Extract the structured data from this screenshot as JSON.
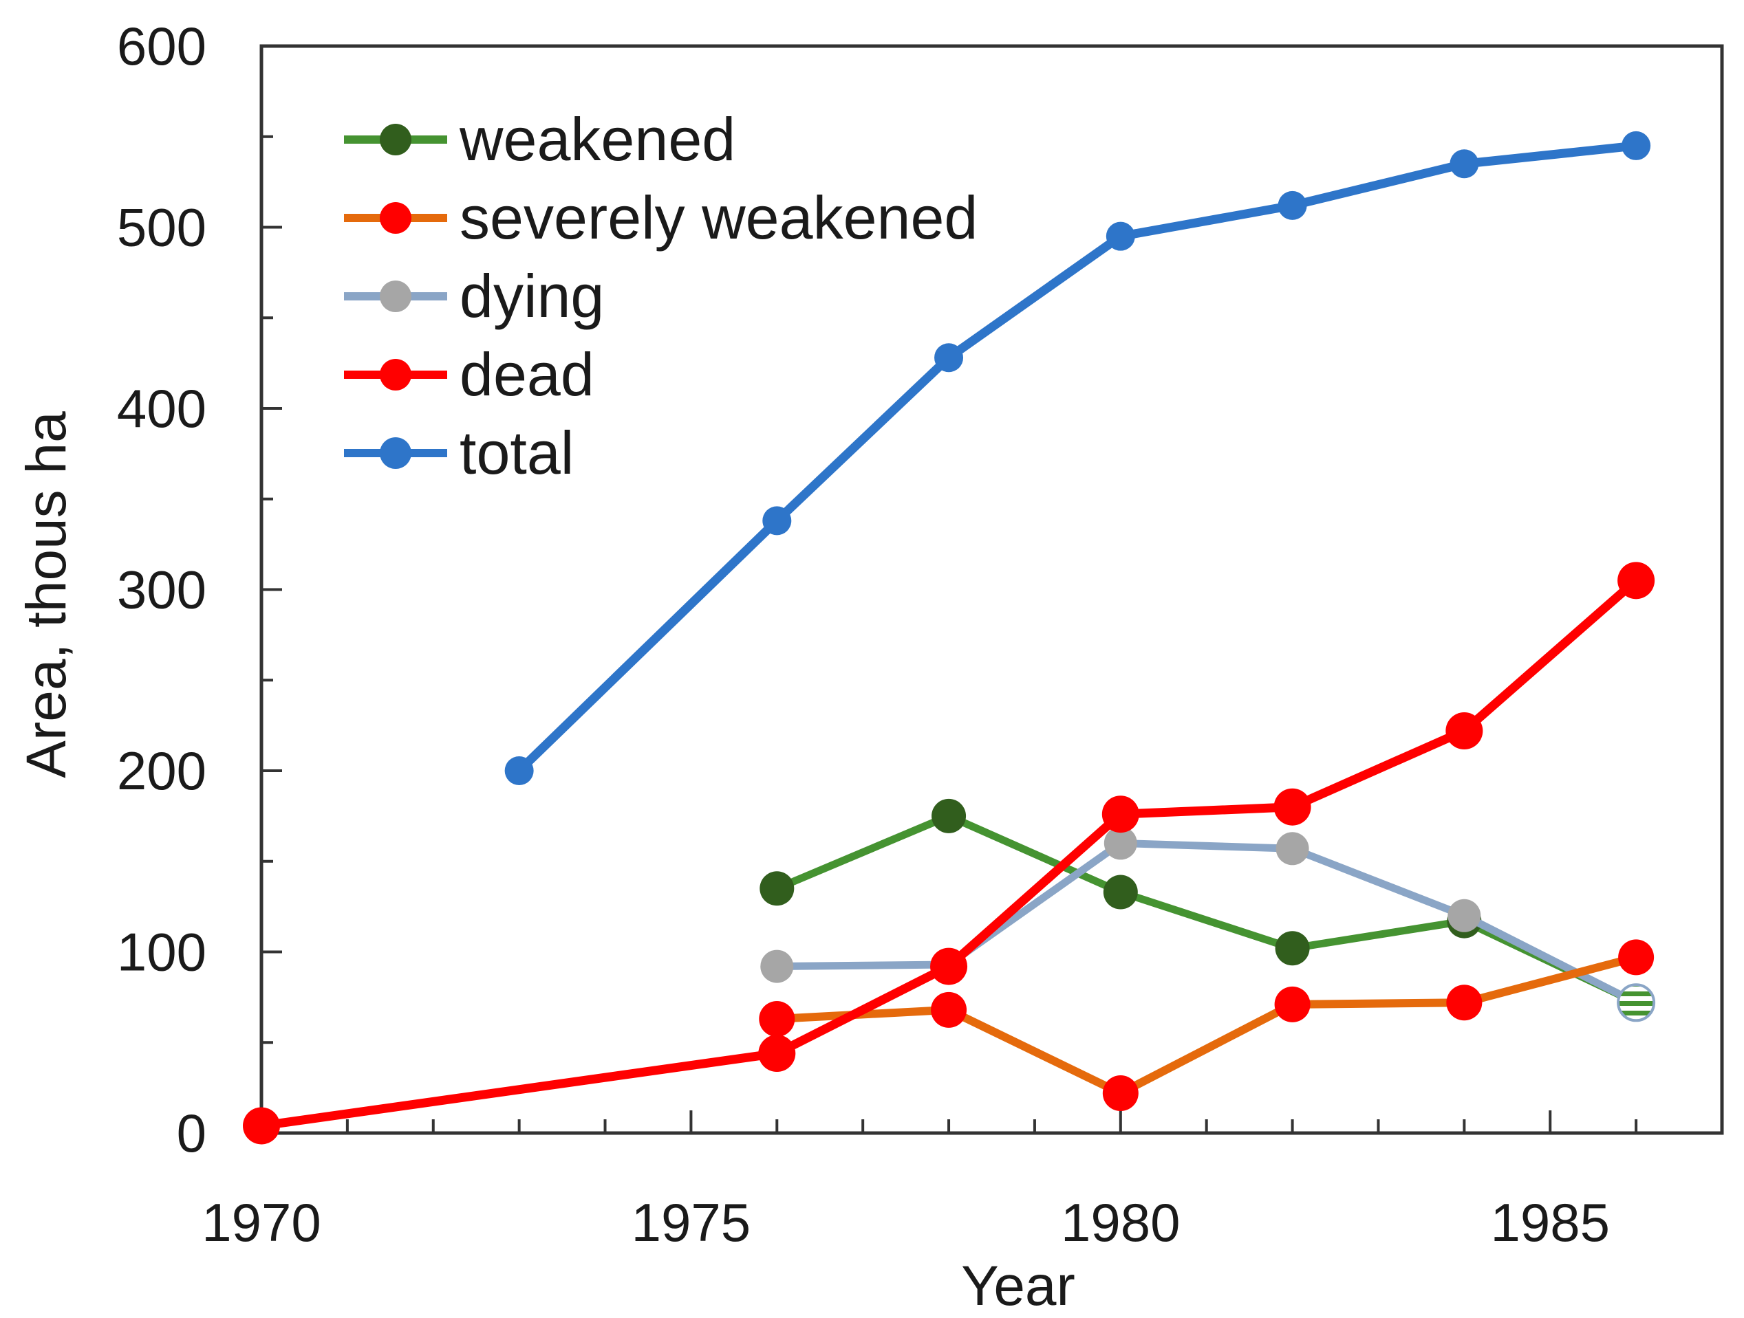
{
  "figure": {
    "background": "#ffffff",
    "axis_color": "#333333",
    "text_color": "#1a1a1a"
  },
  "chart_data": {
    "type": "line",
    "title": "",
    "xlabel": "Year",
    "ylabel": "Area, thous ha",
    "xlim": [
      1970,
      1987
    ],
    "ylim": [
      0,
      600
    ],
    "x_major_ticks": [
      1970,
      1975,
      1980,
      1985
    ],
    "x_minor_ticks": [
      1971,
      1972,
      1973,
      1974,
      1976,
      1977,
      1978,
      1979,
      1981,
      1982,
      1983,
      1984,
      1986
    ],
    "y_major_ticks": [
      0,
      100,
      200,
      300,
      400,
      500,
      600
    ],
    "y_minor_ticks": [
      50,
      150,
      250,
      350,
      450,
      550
    ],
    "grid": false,
    "legend_position": "top-left-inside",
    "series": [
      {
        "name": "weakened",
        "line_color": "#459331",
        "marker_color": "#315e1d",
        "line_width": 11,
        "marker_radius": 25,
        "points": [
          [
            1976,
            135
          ],
          [
            1978,
            175
          ],
          [
            1980,
            133
          ],
          [
            1982,
            102
          ],
          [
            1984,
            117
          ],
          [
            1986,
            72
          ]
        ]
      },
      {
        "name": "severely weakened",
        "line_color": "#e56a0c",
        "marker_color": "#ff0000",
        "line_width": 12,
        "marker_radius": 26,
        "points": [
          [
            1976,
            63
          ],
          [
            1978,
            68
          ],
          [
            1980,
            22
          ],
          [
            1982,
            71
          ],
          [
            1984,
            72
          ],
          [
            1986,
            97
          ]
        ]
      },
      {
        "name": "dying",
        "line_color": "#8aa5c6",
        "marker_color": "#a6a6a6",
        "line_width": 11,
        "marker_radius": 24,
        "points": [
          [
            1976,
            92
          ],
          [
            1978,
            93
          ],
          [
            1980,
            160
          ],
          [
            1982,
            157
          ],
          [
            1984,
            120
          ],
          [
            1986,
            72
          ]
        ]
      },
      {
        "name": "dead",
        "line_color": "#ff0000",
        "marker_color": "#ff0000",
        "line_width": 13,
        "marker_radius": 27,
        "points": [
          [
            1970,
            4
          ],
          [
            1976,
            44
          ],
          [
            1978,
            92
          ],
          [
            1980,
            176
          ],
          [
            1982,
            180
          ],
          [
            1984,
            222
          ],
          [
            1986,
            305
          ]
        ]
      },
      {
        "name": "total",
        "line_color": "#2e75c9",
        "marker_color": "#2e75c9",
        "line_width": 13,
        "marker_radius": 21,
        "points": [
          [
            1973,
            200
          ],
          [
            1976,
            338
          ],
          [
            1978,
            428
          ],
          [
            1980,
            495
          ],
          [
            1982,
            512
          ],
          [
            1984,
            535
          ],
          [
            1986,
            545
          ]
        ]
      }
    ],
    "overlap_marker": {
      "x": 1986,
      "y": 72,
      "stripe_color": "#459331",
      "background_color": "#ffffff",
      "border_color": "#8aa5c6",
      "note": "striped marker where weakened and dying series coincide"
    }
  }
}
